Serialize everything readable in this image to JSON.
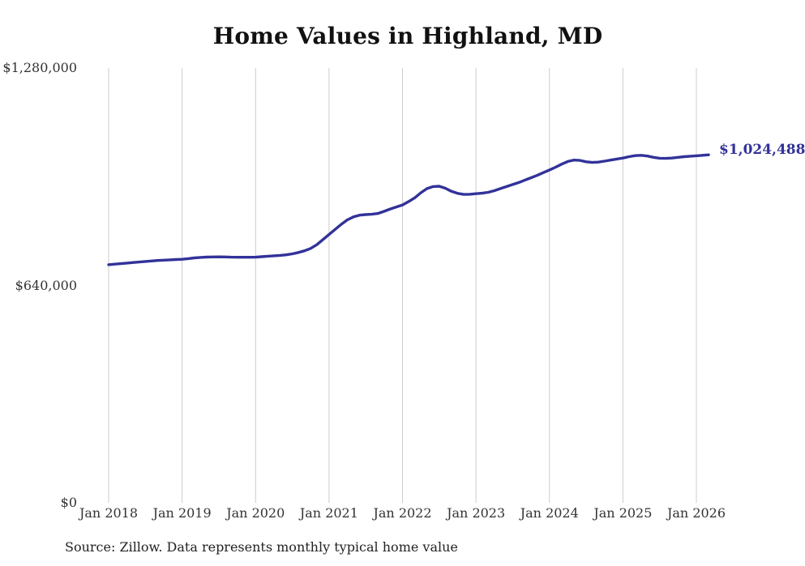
{
  "title": "Home Values in Highland, MD",
  "source_note": "Source: Zillow. Data represents monthly typical home value",
  "end_label": "$1,024,488",
  "colors": {
    "line": "#32329a",
    "grid": "#cccccc",
    "title_text": "#111111",
    "tick_text": "#333333",
    "source_text": "#222222",
    "background": "#ffffff"
  },
  "chart_data": {
    "type": "line",
    "title": "Home Values in Highland, MD",
    "xlabel": "",
    "ylabel": "",
    "legend": "none",
    "grid": "vertical-only",
    "ylim": [
      0,
      1280000
    ],
    "x_start": "2018-01",
    "x_end": "2026-03",
    "x_interval": "monthly",
    "x_tick_labels": [
      "Jan 2018",
      "Jan 2019",
      "Jan 2020",
      "Jan 2021",
      "Jan 2022",
      "Jan 2023",
      "Jan 2024",
      "Jan 2025",
      "Jan 2026"
    ],
    "y_ticks": [
      {
        "label": "$0",
        "value": 0
      },
      {
        "label": "$640,000",
        "value": 640000
      },
      {
        "label": "$1,280,000",
        "value": 1280000
      }
    ],
    "final_value": 1024488,
    "final_value_label": "$1,024,488",
    "series": [
      {
        "name": "Typical home value",
        "values": [
          701000,
          702600,
          704200,
          705800,
          707400,
          709000,
          710500,
          712000,
          713300,
          714400,
          715300,
          716200,
          717000,
          719000,
          721000,
          722500,
          723500,
          724000,
          724200,
          723800,
          723300,
          723000,
          723000,
          723000,
          723200,
          724500,
          726000,
          727200,
          728500,
          730000,
          733000,
          737000,
          742000,
          749000,
          760000,
          775000,
          790000,
          805000,
          820000,
          833000,
          842000,
          847000,
          848500,
          849500,
          852000,
          858000,
          865000,
          871000,
          877000,
          887000,
          898000,
          913000,
          925000,
          931000,
          932000,
          926000,
          917000,
          911000,
          908000,
          908500,
          910000,
          911500,
          914000,
          919000,
          925000,
          931000,
          937000,
          943000,
          950000,
          957000,
          964000,
          972000,
          980000,
          988000,
          997000,
          1005000,
          1009000,
          1008000,
          1004000,
          1002000,
          1003000,
          1006000,
          1009000,
          1012000,
          1015000,
          1019000,
          1022000,
          1023000,
          1021000,
          1017000,
          1014500,
          1014000,
          1015000,
          1017000,
          1019000,
          1020500,
          1021500,
          1023000,
          1024488
        ]
      }
    ]
  }
}
